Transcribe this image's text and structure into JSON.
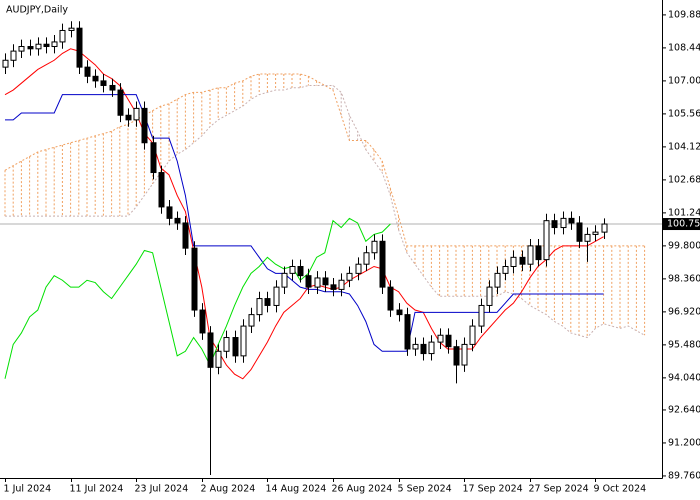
{
  "chart_data": {
    "type": "candlestick",
    "title": "AUDJPY,Daily",
    "categories": [
      "1 Jul 2024",
      null,
      null,
      null,
      null,
      null,
      null,
      null,
      "11 Jul 2024",
      null,
      null,
      null,
      null,
      null,
      null,
      null,
      "23 Jul 2024",
      null,
      null,
      null,
      null,
      null,
      null,
      null,
      "2 Aug 2024",
      null,
      null,
      null,
      null,
      null,
      null,
      null,
      "14 Aug 2024",
      null,
      null,
      null,
      null,
      null,
      null,
      null,
      "26 Aug 2024",
      null,
      null,
      null,
      null,
      null,
      null,
      null,
      "5 Sep 2024",
      null,
      null,
      null,
      null,
      null,
      null,
      null,
      "17 Sep 2024",
      null,
      null,
      null,
      null,
      null,
      null,
      null,
      "27 Sep 2024",
      null,
      null,
      null,
      null,
      null,
      null,
      null,
      "9 Oct 2024",
      null,
      null,
      null,
      null,
      null,
      null
    ],
    "open": [
      107.6,
      107.9,
      108.3,
      108.5,
      108.4,
      108.6,
      108.5,
      108.7,
      109.2,
      109.3,
      107.6,
      107.2,
      107.0,
      106.8,
      106.6,
      105.5,
      105.3,
      105.8,
      104.3,
      103.0,
      101.5,
      101.0,
      100.8,
      99.7,
      97.0,
      96.0,
      94.5,
      95.2,
      95.8,
      95.0,
      96.3,
      96.8,
      97.5,
      97.2,
      98.0,
      98.6,
      98.9,
      98.5,
      98.0,
      98.4,
      98.1,
      97.9,
      98.3,
      98.6,
      99.0,
      99.5,
      100.0,
      98.0,
      97.0,
      96.8,
      95.3,
      95.5,
      95.1,
      95.6,
      95.9,
      95.4,
      94.6,
      95.5,
      96.3,
      97.2,
      98.0,
      98.6,
      98.9,
      99.3,
      99.0,
      99.8,
      99.2,
      100.9,
      100.6,
      101.0,
      100.8,
      100.0,
      100.3,
      100.4,
      null,
      null,
      null,
      null,
      null
    ],
    "high": [
      108.2,
      108.6,
      108.8,
      108.8,
      108.9,
      108.9,
      109.0,
      109.5,
      109.6,
      109.6,
      107.9,
      107.5,
      107.3,
      107.1,
      106.9,
      105.8,
      106.1,
      106.1,
      104.6,
      103.3,
      101.8,
      101.3,
      101.1,
      100.0,
      97.3,
      96.3,
      95.5,
      96.1,
      96.1,
      96.6,
      97.1,
      97.8,
      97.8,
      98.3,
      98.9,
      99.2,
      99.2,
      98.8,
      98.7,
      98.7,
      98.4,
      98.6,
      98.9,
      99.3,
      99.8,
      100.3,
      100.3,
      98.3,
      97.3,
      97.1,
      95.8,
      95.8,
      95.9,
      96.2,
      96.2,
      95.7,
      95.8,
      96.6,
      97.5,
      98.3,
      98.9,
      99.2,
      99.6,
      99.6,
      100.1,
      100.1,
      101.2,
      101.2,
      101.3,
      101.3,
      101.1,
      100.6,
      100.7,
      101.0,
      null,
      null,
      null,
      null,
      null
    ],
    "low": [
      107.3,
      107.6,
      108.0,
      108.1,
      108.1,
      108.2,
      108.2,
      108.4,
      108.9,
      107.3,
      106.9,
      106.7,
      106.5,
      106.3,
      105.2,
      105.0,
      105.0,
      104.0,
      102.7,
      101.2,
      100.7,
      100.5,
      99.4,
      96.7,
      95.7,
      89.8,
      94.2,
      94.9,
      94.7,
      94.7,
      96.0,
      96.5,
      96.9,
      96.9,
      97.7,
      98.3,
      98.2,
      97.7,
      97.7,
      97.8,
      97.6,
      97.6,
      98.0,
      98.3,
      98.7,
      99.2,
      97.7,
      96.7,
      96.5,
      95.0,
      95.0,
      94.8,
      94.8,
      95.3,
      95.1,
      93.8,
      94.3,
      95.2,
      96.0,
      96.9,
      97.7,
      98.3,
      98.6,
      98.7,
      98.7,
      98.9,
      98.9,
      100.3,
      100.3,
      100.5,
      99.7,
      99.1,
      100.0,
      100.1,
      null,
      null,
      null,
      null,
      null
    ],
    "close": [
      107.9,
      108.3,
      108.5,
      108.4,
      108.6,
      108.5,
      108.7,
      109.2,
      109.3,
      107.6,
      107.2,
      107.0,
      106.8,
      106.6,
      105.5,
      105.3,
      105.8,
      104.3,
      103.0,
      101.5,
      101.0,
      100.8,
      99.7,
      97.0,
      96.0,
      94.5,
      95.2,
      95.8,
      95.0,
      96.3,
      96.8,
      97.5,
      97.2,
      98.0,
      98.6,
      98.9,
      98.5,
      98.0,
      98.4,
      98.1,
      97.9,
      98.3,
      98.6,
      99.0,
      99.5,
      100.0,
      98.0,
      97.0,
      96.8,
      95.3,
      95.5,
      95.1,
      95.6,
      95.9,
      95.4,
      94.6,
      95.5,
      96.3,
      97.2,
      98.0,
      98.6,
      98.9,
      99.3,
      99.0,
      99.8,
      99.2,
      100.9,
      100.6,
      101.0,
      100.8,
      100.0,
      100.3,
      100.4,
      100.753,
      null,
      null,
      null,
      null,
      null
    ],
    "lines": [
      {
        "color": "#ff0000",
        "values": [
          106.4,
          106.6,
          106.9,
          107.2,
          107.5,
          107.7,
          107.9,
          108.2,
          108.4,
          108.3,
          108.0,
          107.7,
          107.3,
          107.1,
          106.8,
          106.2,
          105.6,
          104.7,
          104.3,
          103.2,
          102.9,
          102.0,
          101.3,
          99.6,
          98.0,
          95.8,
          95.2,
          94.6,
          94.2,
          94.0,
          94.4,
          95.0,
          95.6,
          96.3,
          96.9,
          97.2,
          97.5,
          98.0,
          98.1,
          98.0,
          97.9,
          98.0,
          98.3,
          98.5,
          98.7,
          98.9,
          98.8,
          98.0,
          97.8,
          97.3,
          97.0,
          96.9,
          96.2,
          95.6,
          95.3,
          95.3,
          95.3,
          95.3,
          95.8,
          96.2,
          96.6,
          97.0,
          97.3,
          97.8,
          98.4,
          98.9,
          99.2,
          99.6,
          99.8,
          99.8,
          99.8,
          99.8,
          100.0,
          100.2,
          null,
          null,
          null,
          null,
          null
        ]
      },
      {
        "color": "#0000c8",
        "values": [
          105.3,
          105.3,
          105.6,
          105.6,
          105.6,
          105.6,
          105.6,
          106.4,
          106.4,
          106.4,
          106.4,
          106.4,
          106.4,
          106.4,
          106.4,
          106.4,
          106.4,
          105.5,
          104.5,
          104.5,
          104.5,
          103.5,
          102.0,
          99.8,
          99.8,
          99.8,
          99.8,
          99.8,
          99.8,
          99.8,
          99.8,
          99.3,
          98.8,
          98.6,
          98.6,
          98.3,
          98.0,
          97.9,
          97.9,
          97.8,
          97.8,
          97.8,
          97.7,
          97.2,
          96.5,
          95.5,
          95.2,
          95.2,
          95.2,
          95.2,
          96.9,
          96.9,
          96.9,
          96.9,
          96.9,
          96.9,
          96.9,
          96.9,
          96.9,
          96.9,
          96.9,
          97.3,
          97.7,
          97.7,
          97.7,
          97.7,
          97.7,
          97.7,
          97.7,
          97.7,
          97.7,
          97.7,
          97.7,
          97.7,
          null,
          null,
          null,
          null,
          null
        ]
      },
      {
        "color": "#00e000",
        "values": [
          94.0,
          95.5,
          96.0,
          96.7,
          97.0,
          98.0,
          98.5,
          98.3,
          98.0,
          98.0,
          98.3,
          98.2,
          97.8,
          97.5,
          98.0,
          98.5,
          99.0,
          99.6,
          99.5,
          98.0,
          96.5,
          95.0,
          95.2,
          95.8,
          95.3,
          94.6,
          95.5,
          96.3,
          97.2,
          98.0,
          98.6,
          98.9,
          99.3,
          99.0,
          98.8,
          98.9,
          98.3,
          98.6,
          99.3,
          99.5,
          100.9,
          100.6,
          101.0,
          100.8,
          100.0,
          100.3,
          100.4,
          100.753,
          null,
          null,
          null,
          null,
          null,
          null,
          null,
          null,
          null,
          null,
          null,
          null,
          null,
          null,
          null,
          null,
          null,
          null,
          null,
          null,
          null,
          null,
          null,
          null,
          null,
          null,
          null,
          null,
          null,
          null,
          null
        ]
      }
    ],
    "cloud": {
      "up_color": "#f0a060",
      "down_color": "#c8b0b0",
      "span_a": [
        103.1,
        103.3,
        103.5,
        103.7,
        103.9,
        104.0,
        104.1,
        104.2,
        104.3,
        104.4,
        104.5,
        104.6,
        104.7,
        104.8,
        105.0,
        105.1,
        105.3,
        105.5,
        105.7,
        105.9,
        106.0,
        106.2,
        106.4,
        106.5,
        106.5,
        106.6,
        106.7,
        106.7,
        106.9,
        107.0,
        107.2,
        107.3,
        107.3,
        107.3,
        107.3,
        107.3,
        107.3,
        107.2,
        107.0,
        106.8,
        106.6,
        105.5,
        104.4,
        104.4,
        104.4,
        104.0,
        103.5,
        102.3,
        101.1,
        99.8,
        99.8,
        99.8,
        99.8,
        99.8,
        99.8,
        99.8,
        99.8,
        99.8,
        99.8,
        99.8,
        99.8,
        99.8,
        99.8,
        99.8,
        99.8,
        99.8,
        99.8,
        99.8,
        99.8,
        99.8,
        99.8,
        99.8,
        99.8,
        99.8,
        99.8,
        99.8,
        99.8,
        99.8,
        99.8
      ],
      "span_b": [
        101.1,
        101.1,
        101.1,
        101.1,
        101.1,
        101.1,
        101.1,
        101.1,
        101.1,
        101.1,
        101.1,
        101.1,
        101.1,
        101.1,
        101.1,
        101.1,
        101.5,
        102.0,
        102.5,
        103.0,
        103.5,
        103.8,
        104.0,
        104.3,
        104.6,
        105.0,
        105.3,
        105.5,
        105.7,
        105.9,
        106.2,
        106.4,
        106.5,
        106.6,
        106.6,
        106.7,
        106.7,
        106.8,
        106.8,
        106.8,
        106.8,
        106.5,
        105.5,
        104.8,
        104.0,
        103.5,
        103.0,
        102.0,
        100.5,
        99.5,
        99.0,
        98.5,
        98.0,
        97.6,
        97.6,
        97.6,
        97.6,
        97.6,
        97.6,
        97.6,
        97.6,
        97.8,
        97.7,
        97.5,
        97.2,
        97.0,
        96.8,
        96.5,
        96.3,
        96.0,
        95.9,
        95.8,
        96.2,
        96.4,
        96.3,
        96.2,
        96.3,
        96.1,
        95.9
      ]
    },
    "last_price": 100.753,
    "ylim": [
      89.67,
      110.53
    ],
    "yticks": [
      {
        "value": 109.88,
        "label": "109.880"
      },
      {
        "value": 108.44,
        "label": "108.440"
      },
      {
        "value": 107.0,
        "label": "107.000"
      },
      {
        "value": 105.56,
        "label": "105.560"
      },
      {
        "value": 104.12,
        "label": "104.120"
      },
      {
        "value": 102.68,
        "label": "102.680"
      },
      {
        "value": 101.24,
        "label": "101.240"
      },
      {
        "value": 99.8,
        "label": "99.800"
      },
      {
        "value": 98.36,
        "label": "98.360"
      },
      {
        "value": 96.92,
        "label": "96.920"
      },
      {
        "value": 95.48,
        "label": "95.480"
      },
      {
        "value": 94.04,
        "label": "94.040"
      },
      {
        "value": 92.64,
        "label": "92.640"
      },
      {
        "value": 91.2,
        "label": "91.200"
      },
      {
        "value": 89.76,
        "label": "89.760"
      }
    ]
  }
}
